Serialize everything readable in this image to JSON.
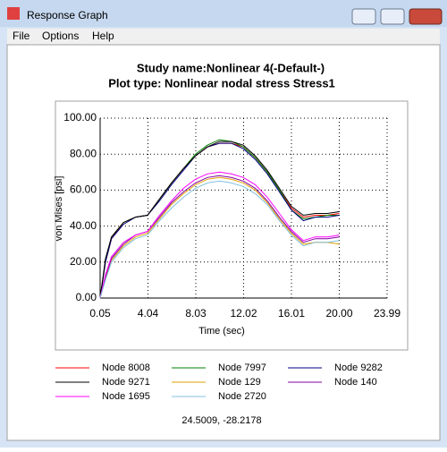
{
  "window": {
    "title": "Response Graph",
    "menu": [
      "File",
      "Options",
      "Help"
    ]
  },
  "cursor_readout": "24.5009, -28.2178",
  "chart_data": {
    "type": "line",
    "title": "Study name:Nonlinear 4(-Default-)",
    "subtitle": "Plot type: Nonlinear nodal stress Stress1",
    "x_label": "Time (sec)",
    "y_label": "von Mises [psi]",
    "x": [
      0.05,
      0.5,
      1,
      2,
      3,
      4,
      5,
      6,
      7,
      8,
      9,
      10,
      11,
      12,
      13,
      14,
      15,
      16,
      17,
      18,
      19,
      20
    ],
    "xlim": [
      0.05,
      23.99
    ],
    "ylim": [
      0,
      100
    ],
    "xticks": [
      0.05,
      4.04,
      8.03,
      12.02,
      16.01,
      {
        "value": 20,
        "label": "20.00"
      },
      23.99
    ],
    "yticks": [
      {
        "value": 0,
        "label": "0.00"
      },
      {
        "value": 20,
        "label": "20.00"
      },
      {
        "value": 40,
        "label": "40.00"
      },
      {
        "value": 60,
        "label": "60.00"
      },
      {
        "value": 80,
        "label": "80.00"
      },
      {
        "value": 100,
        "label": "100.00"
      }
    ],
    "grid": true,
    "series": [
      {
        "name": "Node 8008",
        "color": "#ff0000",
        "values": [
          0,
          20,
          33,
          42,
          45,
          46,
          55,
          64,
          72,
          79,
          84,
          86,
          86,
          84,
          78,
          70,
          60,
          50,
          45,
          46,
          46,
          47
        ]
      },
      {
        "name": "Node 7997",
        "color": "#008000",
        "values": [
          0,
          21,
          34,
          42,
          45,
          46,
          55,
          64,
          72,
          80,
          85,
          88,
          87,
          84,
          78,
          70,
          60,
          49,
          44,
          45,
          46,
          46
        ]
      },
      {
        "name": "Node 9282",
        "color": "#000080",
        "values": [
          0,
          20,
          33,
          41,
          45,
          46,
          54,
          63,
          71,
          79,
          84,
          86,
          86,
          83,
          77,
          69,
          59,
          49,
          43,
          45,
          45,
          46
        ]
      },
      {
        "name": "Node 9271",
        "color": "#000000",
        "values": [
          0,
          22,
          34,
          42,
          45,
          46,
          55,
          64,
          72,
          79,
          84,
          87,
          87,
          85,
          79,
          71,
          61,
          51,
          46,
          47,
          47,
          48
        ]
      },
      {
        "name": "Node 129",
        "color": "#e0a000",
        "values": [
          0,
          11,
          21,
          29,
          34,
          36,
          44,
          52,
          58,
          63,
          66,
          67,
          66,
          64,
          60,
          53,
          44,
          36,
          30,
          31,
          31,
          30
        ]
      },
      {
        "name": "Node 140",
        "color": "#8000a0",
        "values": [
          0,
          12,
          22,
          30,
          35,
          37,
          45,
          53,
          59,
          64,
          67,
          68,
          67,
          65,
          61,
          54,
          45,
          37,
          31,
          33,
          33,
          34
        ]
      },
      {
        "name": "Node 1695",
        "color": "#ff00ff",
        "values": [
          0,
          13,
          23,
          31,
          35,
          37,
          46,
          54,
          61,
          66,
          69,
          70,
          69,
          67,
          63,
          56,
          47,
          38,
          32,
          34,
          34,
          35
        ]
      },
      {
        "name": "Node 2720",
        "color": "#80c0e0",
        "values": [
          0,
          10,
          20,
          28,
          33,
          35,
          43,
          50,
          56,
          61,
          64,
          65,
          64,
          62,
          58,
          52,
          43,
          35,
          29,
          31,
          31,
          32
        ]
      }
    ]
  }
}
